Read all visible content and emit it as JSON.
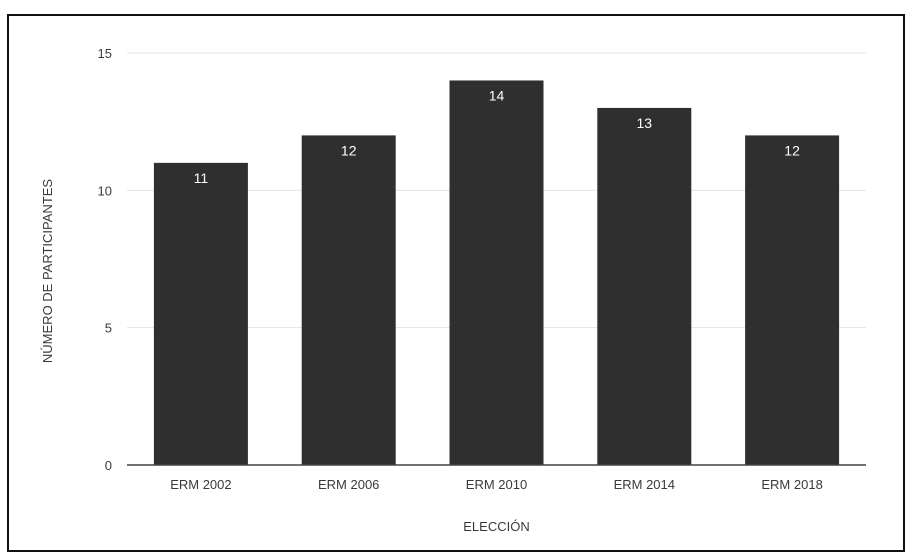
{
  "chart_data": {
    "type": "bar",
    "title": "",
    "xlabel": "ELECCIÓN",
    "ylabel": "NÚMERO DE PARTICIPANTES",
    "categories": [
      "ERM 2002",
      "ERM 2006",
      "ERM 2010",
      "ERM 2014",
      "ERM 2018"
    ],
    "values": [
      11,
      12,
      14,
      13,
      12
    ],
    "data_labels": [
      "11",
      "12",
      "14",
      "13",
      "12"
    ],
    "yticks": [
      0,
      5,
      10,
      15
    ],
    "ylim": [
      0,
      15
    ],
    "grid": true,
    "legend": "none",
    "colors": {
      "bar": "#2f2f2f",
      "grid": "#e3e3e3",
      "axis": "#444444",
      "text": "#3a3a3a",
      "data_label": "#ffffff"
    }
  }
}
